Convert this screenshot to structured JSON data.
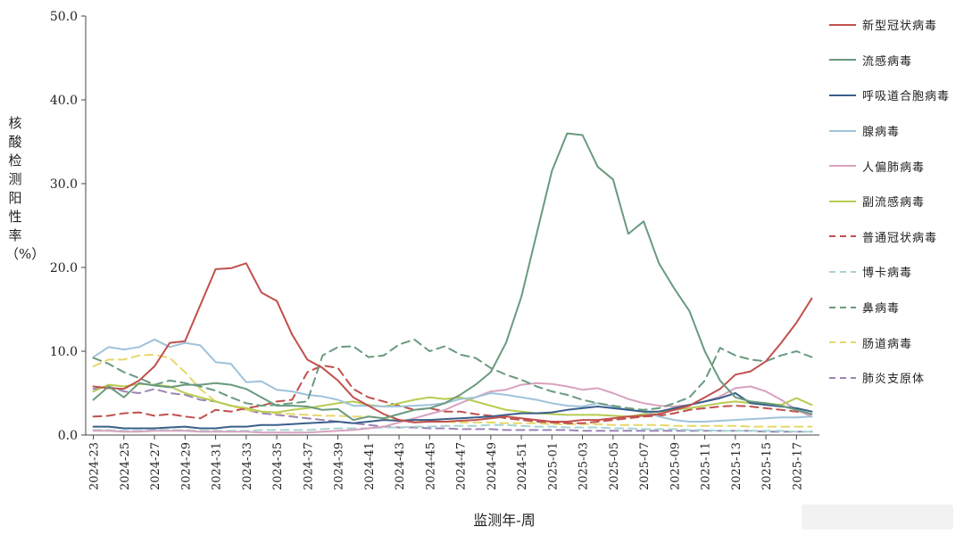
{
  "chart_data": {
    "type": "line",
    "title": "",
    "xlabel": "监测年-周",
    "ylabel": "核酸检测阳性率（%）",
    "ylim": [
      0,
      50
    ],
    "yticks": [
      "0.0",
      "10.0",
      "20.0",
      "30.0",
      "40.0",
      "50.0"
    ],
    "grid": false,
    "legend_position": "right",
    "x_weeks": [
      "2024-23",
      "2024-24",
      "2024-25",
      "2024-26",
      "2024-27",
      "2024-28",
      "2024-29",
      "2024-30",
      "2024-31",
      "2024-32",
      "2024-33",
      "2024-34",
      "2024-35",
      "2024-36",
      "2024-37",
      "2024-38",
      "2024-39",
      "2024-40",
      "2024-41",
      "2024-42",
      "2024-43",
      "2024-44",
      "2024-45",
      "2024-46",
      "2024-47",
      "2024-48",
      "2024-49",
      "2024-50",
      "2024-51",
      "2024-52",
      "2025-01",
      "2025-02",
      "2025-03",
      "2025-04",
      "2025-05",
      "2025-06",
      "2025-07",
      "2025-08",
      "2025-09",
      "2025-10",
      "2025-11",
      "2025-12",
      "2025-13",
      "2025-14",
      "2025-15",
      "2025-16",
      "2025-17",
      "2025-18"
    ],
    "x_tick_labels": [
      "2024-23",
      "2024-25",
      "2024-27",
      "2024-29",
      "2024-31",
      "2024-33",
      "2024-35",
      "2024-37",
      "2024-39",
      "2024-41",
      "2024-43",
      "2024-45",
      "2024-47",
      "2024-49",
      "2024-51",
      "2025-01",
      "2025-03",
      "2025-05",
      "2025-07",
      "2025-09",
      "2025-11",
      "2025-13",
      "2025-15",
      "2025-17"
    ],
    "series": [
      {
        "name": "新型冠状病毒",
        "color": "#c0504d",
        "dash": false,
        "values": [
          5.8,
          5.6,
          5.5,
          6.5,
          8.2,
          11.0,
          11.2,
          15.5,
          19.8,
          19.9,
          20.5,
          17.0,
          16.0,
          12.0,
          9.0,
          8.0,
          6.5,
          4.5,
          3.5,
          2.5,
          1.8,
          1.5,
          1.6,
          1.6,
          1.7,
          1.8,
          2.0,
          2.2,
          2.0,
          1.8,
          1.6,
          1.6,
          1.8,
          1.8,
          2.0,
          2.2,
          2.3,
          2.5,
          3.0,
          3.5,
          4.5,
          5.5,
          7.2,
          7.6,
          8.8,
          11.0,
          13.4,
          16.3
        ]
      },
      {
        "name": "流感病毒",
        "color": "#6a9a7e",
        "dash": false,
        "values": [
          4.2,
          5.8,
          4.5,
          6.2,
          5.9,
          5.7,
          6.0,
          6.0,
          6.2,
          6.0,
          5.5,
          4.5,
          3.5,
          3.5,
          3.4,
          3.0,
          3.1,
          1.8,
          2.2,
          2.0,
          2.5,
          3.0,
          3.2,
          3.8,
          4.8,
          6.0,
          7.5,
          11.0,
          16.5,
          24.0,
          31.5,
          36.0,
          35.8,
          32.0,
          30.5,
          24.0,
          25.5,
          20.5,
          17.5,
          14.8,
          10.0,
          6.5,
          4.5,
          4.0,
          3.8,
          3.5,
          3.0,
          2.5
        ]
      },
      {
        "name": "呼吸道合胞病毒",
        "color": "#3a5f8a",
        "dash": false,
        "values": [
          1.0,
          1.0,
          0.8,
          0.8,
          0.8,
          0.9,
          1.0,
          0.8,
          0.8,
          1.0,
          1.0,
          1.2,
          1.2,
          1.3,
          1.4,
          1.5,
          1.6,
          1.4,
          1.6,
          1.8,
          1.7,
          1.8,
          1.8,
          1.9,
          2.0,
          2.1,
          2.2,
          2.4,
          2.6,
          2.6,
          2.7,
          3.0,
          3.2,
          3.4,
          3.2,
          3.0,
          2.8,
          2.8,
          3.2,
          3.6,
          4.0,
          4.4,
          5.0,
          3.8,
          3.6,
          3.4,
          3.2,
          2.8
        ]
      },
      {
        "name": "腺病毒",
        "color": "#9ec3da",
        "dash": false,
        "values": [
          9.3,
          10.5,
          10.2,
          10.5,
          11.4,
          10.5,
          11.0,
          10.7,
          8.7,
          8.5,
          6.3,
          6.4,
          5.4,
          5.2,
          4.8,
          4.6,
          4.2,
          3.5,
          3.5,
          3.4,
          3.4,
          3.5,
          3.6,
          3.8,
          4.3,
          4.5,
          5.0,
          4.8,
          4.5,
          4.2,
          3.8,
          3.5,
          3.4,
          3.8,
          3.4,
          3.0,
          2.8,
          2.2,
          1.8,
          1.6,
          1.6,
          1.7,
          1.8,
          1.9,
          2.0,
          2.1,
          2.1,
          2.2
        ]
      },
      {
        "name": "人偏肺病毒",
        "color": "#d8a2bf",
        "dash": false,
        "values": [
          0.5,
          0.5,
          0.4,
          0.4,
          0.5,
          0.5,
          0.5,
          0.4,
          0.4,
          0.4,
          0.4,
          0.3,
          0.3,
          0.3,
          0.3,
          0.4,
          0.5,
          0.6,
          0.8,
          1.0,
          1.5,
          2.0,
          2.5,
          3.0,
          3.8,
          4.5,
          5.2,
          5.4,
          6.0,
          6.2,
          6.1,
          5.8,
          5.4,
          5.6,
          5.0,
          4.3,
          3.8,
          3.5,
          3.4,
          3.6,
          4.0,
          4.6,
          5.6,
          5.8,
          5.2,
          4.2,
          3.0,
          2.2
        ]
      },
      {
        "name": "副流感病毒",
        "color": "#b6cc50",
        "dash": false,
        "values": [
          5.2,
          6.0,
          5.8,
          6.1,
          6.0,
          5.8,
          5.0,
          4.5,
          4.0,
          3.5,
          3.2,
          2.8,
          2.7,
          3.0,
          3.2,
          3.5,
          3.8,
          4.0,
          3.6,
          3.4,
          3.8,
          4.2,
          4.5,
          4.3,
          4.5,
          4.0,
          3.5,
          3.0,
          2.8,
          2.6,
          2.5,
          2.4,
          2.4,
          2.4,
          2.3,
          2.2,
          2.5,
          2.8,
          3.0,
          3.2,
          3.5,
          3.8,
          4.0,
          3.8,
          3.8,
          3.6,
          4.4,
          3.6
        ]
      },
      {
        "name": "普通冠状病毒",
        "color": "#c0504d",
        "dash": true,
        "values": [
          2.2,
          2.3,
          2.6,
          2.7,
          2.3,
          2.5,
          2.2,
          2.0,
          3.0,
          2.8,
          3.2,
          3.5,
          4.0,
          4.2,
          7.5,
          8.3,
          8.0,
          5.5,
          4.5,
          4.0,
          3.5,
          3.0,
          3.2,
          2.8,
          2.8,
          2.5,
          2.3,
          2.0,
          1.8,
          1.6,
          1.5,
          1.4,
          1.4,
          1.6,
          1.8,
          2.0,
          2.2,
          2.3,
          2.6,
          3.0,
          3.2,
          3.4,
          3.5,
          3.4,
          3.2,
          3.0,
          2.8,
          2.5
        ]
      },
      {
        "name": "博卡病毒",
        "color": "#a6d4d2",
        "dash": true,
        "values": [
          0.6,
          0.6,
          0.5,
          0.5,
          0.6,
          0.6,
          0.6,
          0.5,
          0.5,
          0.5,
          0.5,
          0.6,
          0.6,
          0.6,
          0.6,
          0.7,
          0.8,
          0.8,
          0.8,
          0.9,
          0.9,
          1.0,
          1.0,
          1.1,
          1.1,
          1.1,
          1.2,
          1.2,
          1.1,
          1.0,
          1.0,
          0.9,
          0.9,
          0.9,
          0.8,
          0.8,
          0.7,
          0.7,
          0.7,
          0.6,
          0.6,
          0.5,
          0.5,
          0.5,
          0.5,
          0.5,
          0.4,
          0.4
        ]
      },
      {
        "name": "鼻病毒",
        "color": "#6a9a7e",
        "dash": true,
        "values": [
          9.2,
          8.5,
          7.5,
          6.8,
          6.0,
          6.5,
          6.2,
          5.8,
          5.3,
          4.5,
          3.8,
          3.5,
          3.6,
          3.8,
          4.0,
          9.5,
          10.5,
          10.6,
          9.3,
          9.5,
          10.8,
          11.4,
          10.0,
          10.6,
          9.6,
          9.2,
          8.0,
          7.2,
          6.6,
          5.8,
          5.2,
          4.8,
          4.2,
          3.8,
          3.5,
          3.2,
          3.0,
          3.2,
          3.8,
          4.5,
          6.5,
          10.4,
          9.5,
          9.0,
          8.8,
          9.5,
          10.0,
          9.3
        ]
      },
      {
        "name": "肠道病毒",
        "color": "#e6d86a",
        "dash": true,
        "values": [
          8.2,
          9.0,
          9.0,
          9.5,
          9.6,
          9.2,
          7.5,
          5.5,
          4.0,
          3.5,
          3.0,
          2.8,
          2.6,
          2.5,
          2.4,
          2.3,
          2.3,
          2.2,
          2.2,
          2.0,
          1.8,
          1.8,
          1.7,
          1.6,
          1.5,
          1.5,
          1.5,
          1.4,
          1.4,
          1.4,
          1.3,
          1.3,
          1.3,
          1.3,
          1.2,
          1.2,
          1.2,
          1.2,
          1.1,
          1.1,
          1.1,
          1.1,
          1.1,
          1.0,
          1.0,
          1.0,
          1.0,
          1.0
        ]
      },
      {
        "name": "肺炎支原体",
        "color": "#9a85b5",
        "dash": true,
        "values": [
          5.5,
          5.8,
          5.2,
          5.0,
          5.5,
          5.0,
          4.8,
          4.2,
          4.0,
          3.5,
          3.0,
          2.6,
          2.4,
          2.2,
          2.0,
          1.8,
          1.6,
          1.4,
          1.2,
          1.0,
          0.9,
          0.9,
          0.8,
          0.8,
          0.7,
          0.7,
          0.7,
          0.6,
          0.6,
          0.6,
          0.6,
          0.6,
          0.5,
          0.5,
          0.5,
          0.5,
          0.5,
          0.5,
          0.5,
          0.5,
          0.5,
          0.5,
          0.5,
          0.5,
          0.4,
          0.4,
          0.4,
          0.4
        ]
      }
    ]
  }
}
